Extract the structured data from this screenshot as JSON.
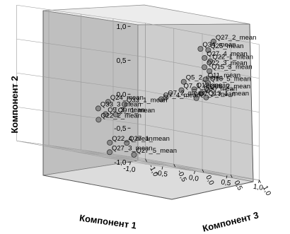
{
  "chart_data": {
    "type": "scatter",
    "subtype": "3d",
    "xlabel": "Компонент 1",
    "ylabel": "Компонент 2",
    "zlabel": "Компонент 3",
    "xlim": [
      -1.0,
      1.0
    ],
    "ylim": [
      -1.0,
      1.0
    ],
    "zlim": [
      -1.0,
      1.0
    ],
    "x_ticks": [
      "-1,0",
      "-0,5",
      "0,0",
      "0,5",
      "1,0"
    ],
    "y_ticks": [
      "1,0",
      "0,5",
      "0,0",
      "-0,5",
      "-1,0"
    ],
    "z_ticks": [
      "1,0",
      "0,5",
      "0,0",
      "-0,5",
      "-1,0"
    ],
    "grid": true,
    "points": [
      {
        "label": "Q27_2_mean",
        "x": 0.9,
        "y": 0.92,
        "z": 0.31
      },
      {
        "label": "Q34_mean",
        "x": 0.6,
        "y": 0.79,
        "z": 0.42
      },
      {
        "label": "Q25_mean",
        "x": 0.88,
        "y": 0.78,
        "z": 0.24
      },
      {
        "label": "Q27_4_mean",
        "x": 0.77,
        "y": 0.66,
        "z": 0.3
      },
      {
        "label": "Q22_1_mean",
        "x": 0.93,
        "y": 0.62,
        "z": 0.22
      },
      {
        "label": "Q22_3_mean",
        "x": 0.83,
        "y": 0.52,
        "z": 0.23
      },
      {
        "label": "Q15_3_mean",
        "x": 0.97,
        "y": 0.47,
        "z": 0.16
      },
      {
        "label": "Q11_mean",
        "x": 0.91,
        "y": 0.34,
        "z": 0.16
      },
      {
        "label": "Q16_5_mean",
        "x": 1.0,
        "y": 0.29,
        "z": 0.1
      },
      {
        "label": "Q33_2_mean",
        "x": 1.02,
        "y": 0.18,
        "z": 0.07
      },
      {
        "label": "Q5_2_mean",
        "x": 0.57,
        "y": 0.26,
        "z": 0.16
      },
      {
        "label": "Q12_mean",
        "x": 0.76,
        "y": 0.17,
        "z": 0.13
      },
      {
        "label": "Q30_mean",
        "x": 0.92,
        "y": 0.13,
        "z": 0.08
      },
      {
        "label": "Q13_1_mean",
        "x": 1.06,
        "y": 0.07,
        "z": 0.0
      },
      {
        "label": "Q7_1_mean",
        "x": 0.57,
        "y": 0.13,
        "z": 0.12
      },
      {
        "label": "Q7_3_mean",
        "x": 0.89,
        "y": 0.04,
        "z": 0.02
      },
      {
        "label": "Q7_2_mean",
        "x": 0.38,
        "y": -0.01,
        "z": 0.06
      },
      {
        "label": "Q7_4_mean",
        "x": 0.37,
        "y": -0.05,
        "z": -0.01
      },
      {
        "label": "Q24_mean",
        "x": -0.41,
        "y": -0.2,
        "z": -0.06
      },
      {
        "label": "Q33_1_mean",
        "x": -0.2,
        "y": -0.2,
        "z": -0.01
      },
      {
        "label": "Q33_3_mean",
        "x": -0.51,
        "y": -0.32,
        "z": -0.12
      },
      {
        "label": "Q9_1_mean",
        "x": -0.29,
        "y": -0.37,
        "z": -0.06
      },
      {
        "label": "Q9_3_mean",
        "x": -0.37,
        "y": -0.39,
        "z": -0.15
      },
      {
        "label": "Q22_2_mean",
        "x": -0.39,
        "y": -0.49,
        "z": -0.25
      },
      {
        "label": "Q27_1_mean",
        "x": -0.04,
        "y": -0.77,
        "z": -0.15
      },
      {
        "label": "Q22_4_mean",
        "x": -0.11,
        "y": -0.81,
        "z": -0.37
      },
      {
        "label": "Q27_3_mean",
        "x": -0.13,
        "y": -0.95,
        "z": -0.35
      },
      {
        "label": "Q27_5_mean",
        "x": 0.09,
        "y": -0.93,
        "z": -0.17
      }
    ]
  }
}
